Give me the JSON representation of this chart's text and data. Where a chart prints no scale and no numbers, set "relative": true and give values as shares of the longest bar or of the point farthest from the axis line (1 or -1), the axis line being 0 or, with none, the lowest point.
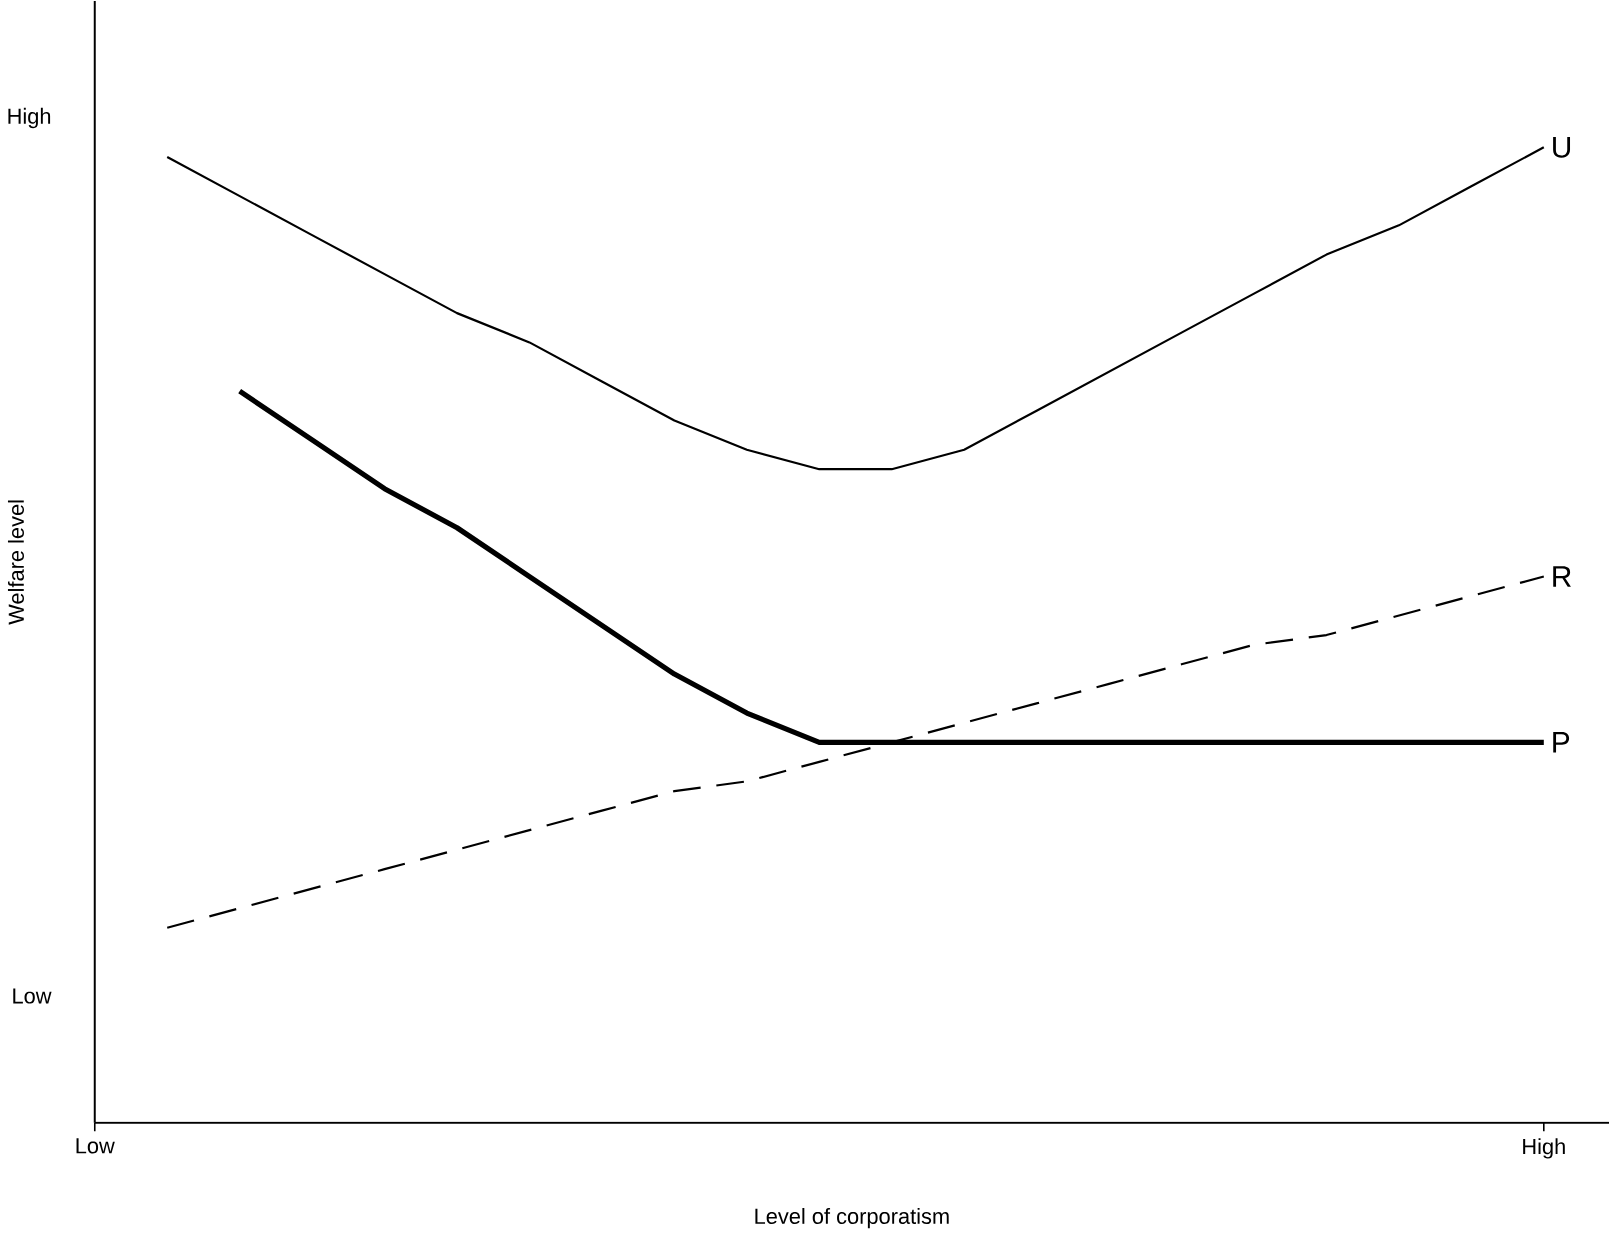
{
  "chart_data": {
    "type": "line",
    "xlabel": "Level of corporatism",
    "ylabel": "Welfare level",
    "relative": true,
    "categories": [
      "Low",
      null,
      null,
      null,
      null,
      null,
      null,
      null,
      null,
      null,
      null,
      null,
      null,
      null,
      null,
      null,
      null,
      null,
      null,
      null,
      "High"
    ],
    "annotations": [
      "High",
      "Low"
    ],
    "series": [
      {
        "name": "U",
        "color": "#000000",
        "line_style": "solid",
        "values": [
          null,
          0.99,
          0.95,
          0.91,
          0.87,
          0.83,
          0.8,
          0.76,
          0.72,
          0.69,
          0.67,
          0.67,
          0.69,
          0.73,
          0.77,
          0.81,
          0.85,
          0.89,
          0.92,
          0.96,
          1.0
        ]
      },
      {
        "name": "R",
        "color": "#000000",
        "line_style": "dashed",
        "values": [
          null,
          0.2,
          0.22,
          0.24,
          0.26,
          0.28,
          0.3,
          0.32,
          0.34,
          0.35,
          0.37,
          0.39,
          0.41,
          0.43,
          0.45,
          0.47,
          0.49,
          0.5,
          0.52,
          0.54,
          0.56
        ]
      },
      {
        "name": "P",
        "color": "#000000",
        "line_style": "solid",
        "values": [
          null,
          null,
          0.75,
          0.7,
          0.65,
          0.61,
          0.56,
          0.51,
          0.46,
          0.42,
          0.39,
          0.39,
          0.39,
          0.39,
          0.39,
          0.39,
          0.39,
          0.39,
          0.39,
          0.39,
          0.39
        ]
      }
    ]
  }
}
